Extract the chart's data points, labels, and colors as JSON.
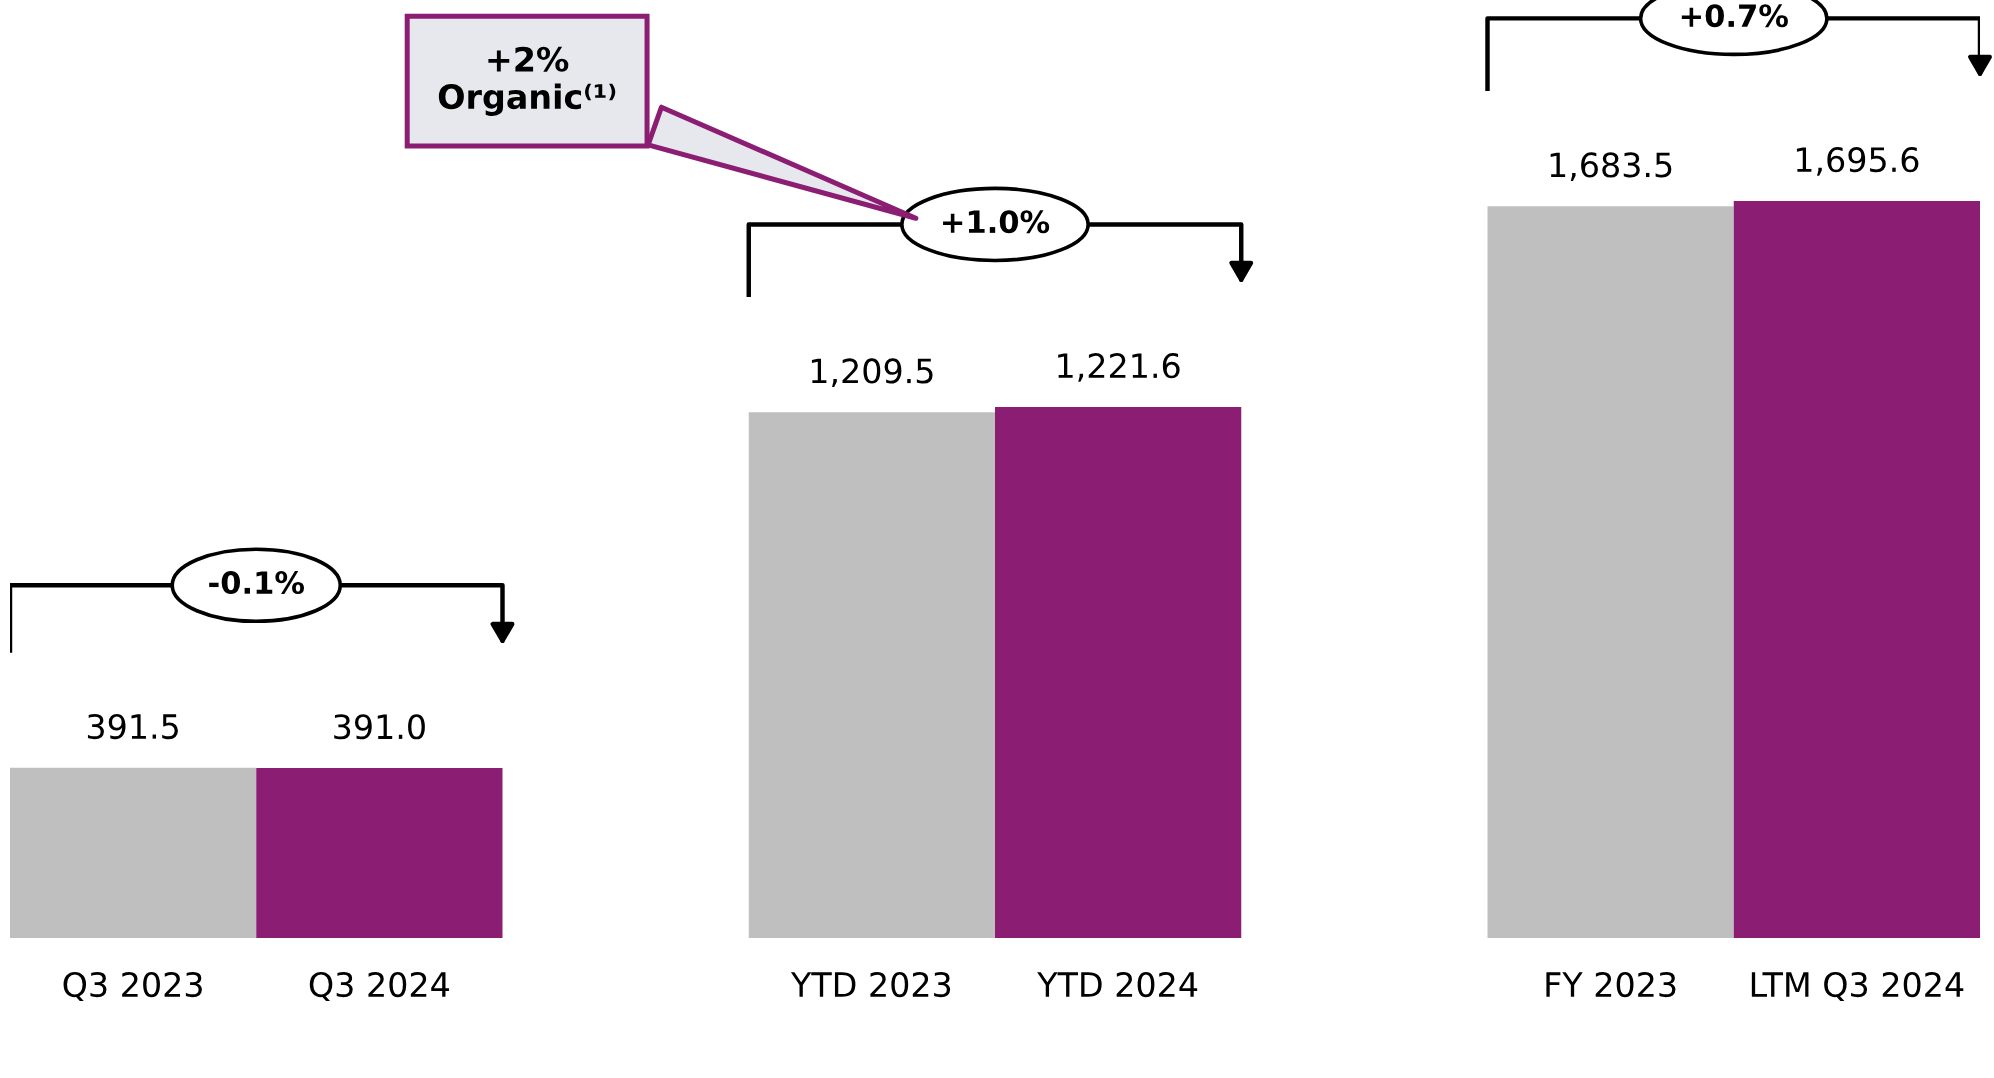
{
  "chart_data": {
    "type": "bar",
    "categories": [
      "Q3 2023",
      "Q3 2024",
      null,
      "YTD 2023",
      "YTD 2024",
      null,
      "FY 2023",
      "LTM Q3 2024"
    ],
    "values": [
      391.5,
      391.0,
      null,
      1209.5,
      1221.6,
      null,
      1683.5,
      1695.6
    ],
    "colors": [
      "#bfbfbf",
      "#8b1e72",
      null,
      "#bfbfbf",
      "#8b1e72",
      null,
      "#bfbfbf",
      "#8b1e72"
    ],
    "value_labels": [
      "391.5",
      "391.0",
      null,
      "1,209.5",
      "1,221.6",
      null,
      "1,683.5",
      "1,695.6"
    ],
    "annotations": [
      "-0.1%",
      "+1.0%",
      "+0.7%",
      "+2%\nOrganic⁽¹⁾"
    ]
  }
}
